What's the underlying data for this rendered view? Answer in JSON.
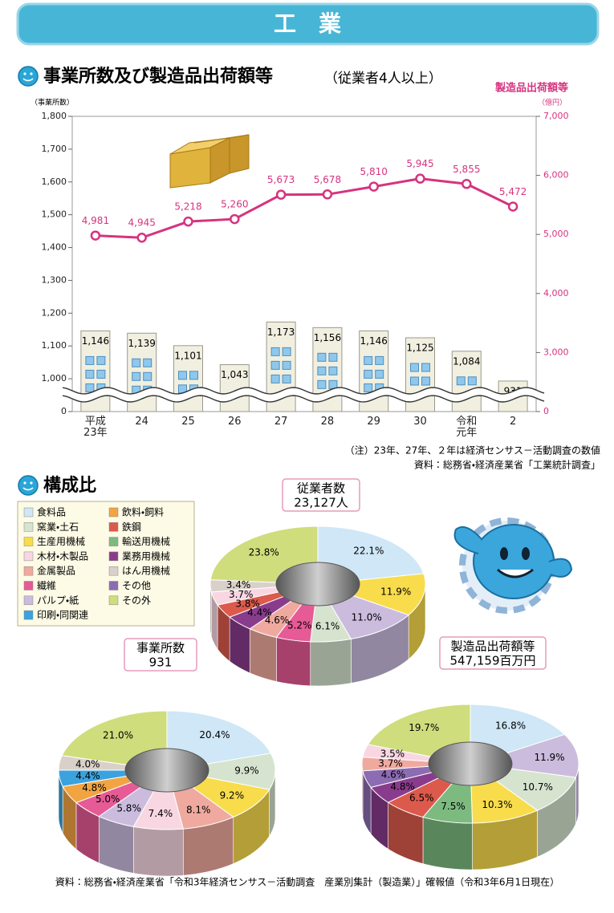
{
  "header": {
    "title": "工　業"
  },
  "chart_data": [
    {
      "type": "bar_line",
      "title": "事業所数及び製造品出荷額等",
      "subtitle": "（従業者4人以上）",
      "ylabel": "（事業所数）",
      "y2label": "製造品出荷額等",
      "y2unit": "（億円）",
      "categories": [
        "平成\n23年",
        "24",
        "25",
        "26",
        "27",
        "28",
        "29",
        "30",
        "令和\n元年",
        "2"
      ],
      "series": [
        {
          "type": "bar",
          "axis": "y",
          "color": "#f1efe0",
          "values": [
            1146,
            1139,
            1101,
            1043,
            1173,
            1156,
            1146,
            1125,
            1084,
            931
          ],
          "value_labels": [
            "1,146",
            "1,139",
            "1,101",
            "1,043",
            "1,173",
            "1,156",
            "1,146",
            "1,125",
            "1,084",
            "931"
          ]
        },
        {
          "type": "line",
          "axis": "y2",
          "color": "#d6337f",
          "values": [
            4981,
            4945,
            5218,
            5260,
            5673,
            5678,
            5810,
            5945,
            5855,
            5472
          ],
          "value_labels": [
            "4,981",
            "4,945",
            "5,218",
            "5,260",
            "5,673",
            "5,678",
            "5,810",
            "5,945",
            "5,855",
            "5,472"
          ]
        }
      ],
      "axis_break": true,
      "ylim": [
        0,
        1800
      ],
      "yticks": [
        0,
        {
          "value": 1000,
          "label": "1,000"
        },
        {
          "value": 1100,
          "label": "1,100"
        },
        {
          "value": 1200,
          "label": "1,200"
        },
        {
          "value": 1300,
          "label": "1,300"
        },
        {
          "value": 1400,
          "label": "1,400"
        },
        {
          "value": 1500,
          "label": "1,500"
        },
        {
          "value": 1600,
          "label": "1,600"
        },
        {
          "value": 1700,
          "label": "1,700"
        },
        {
          "value": 1800,
          "label": "1,800"
        }
      ],
      "y2lim": [
        0,
        7000
      ],
      "y2ticks": [
        0,
        {
          "value": 3000,
          "label": "3,000"
        },
        {
          "value": 4000,
          "label": "4,000"
        },
        {
          "value": 5000,
          "label": "5,000"
        },
        {
          "value": 6000,
          "label": "6,000"
        },
        {
          "value": 7000,
          "label": "7,000"
        }
      ],
      "note": "（注）23年、27年、２年は経済センサス－活動調査の数値",
      "source": "資料：総務省・経済産業省「工業統計調査」"
    },
    {
      "type": "pie",
      "title": "従業者数",
      "subtitle": "23,127人",
      "categories": [
        "食料品",
        "生産用機械",
        "パルプ・紙",
        "窯業・土石",
        "繊維",
        "金属製品",
        "業務用機械",
        "鉄鋼",
        "木材・木製品",
        "はん用機械",
        "その外"
      ],
      "values": [
        22.1,
        11.9,
        11.0,
        6.1,
        5.2,
        4.6,
        4.4,
        3.8,
        3.7,
        3.4,
        23.8
      ],
      "value_labels": [
        "22.1%",
        "11.9%",
        "11.0%",
        "6.1%",
        "5.2%",
        "4.6%",
        "4.4%",
        "3.8%",
        "3.7%",
        "3.4%",
        "23.8%"
      ]
    },
    {
      "type": "pie",
      "title": "事業所数",
      "subtitle": "931",
      "categories": [
        "食料品",
        "窯業・土石",
        "生産用機械",
        "金属製品",
        "木材・木製品",
        "パルプ・紙",
        "繊維",
        "飲料・飼料",
        "印刷・同関連",
        "はん用機械",
        "その外"
      ],
      "values": [
        20.4,
        9.9,
        9.2,
        8.1,
        7.4,
        5.8,
        5.0,
        4.8,
        4.4,
        4.0,
        21.0
      ],
      "value_labels": [
        "20.4%",
        "9.9%",
        "9.2%",
        "8.1%",
        "7.4%",
        "5.8%",
        "5.0%",
        "4.8%",
        "4.4%",
        "4.0%",
        "21.0%"
      ]
    },
    {
      "type": "pie",
      "title": "製造品出荷額等",
      "subtitle": "547,159百万円",
      "categories": [
        "食料品",
        "パルプ・紙",
        "窯業・土石",
        "生産用機械",
        "輸送用機械",
        "鉄鋼",
        "業務用機械",
        "その他",
        "金属製品",
        "木材・木製品",
        "その外"
      ],
      "values": [
        16.8,
        11.9,
        10.7,
        10.3,
        7.5,
        6.5,
        4.8,
        4.6,
        3.7,
        3.5,
        19.7
      ],
      "value_labels": [
        "16.8%",
        "11.9%",
        "10.7%",
        "10.3%",
        "7.5%",
        "6.5%",
        "4.8%",
        "4.6%",
        "3.7%",
        "3.5%",
        "19.7%"
      ]
    }
  ],
  "composition": {
    "title": "構成比",
    "legend": {
      "categories": [
        "食料品",
        "窯業・土石",
        "生産用機械",
        "木材・木製品",
        "金属製品",
        "繊維",
        "パルプ・紙",
        "印刷・同関連",
        "飲料・飼料",
        "鉄鋼",
        "輸送用機械",
        "業務用機械",
        "はん用機械",
        "その他",
        "その外"
      ],
      "colors": [
        "#cfe7f6",
        "#d6e4cf",
        "#f8dc4c",
        "#f8d7e2",
        "#f0a99f",
        "#e65a96",
        "#cbbcde",
        "#3aa2de",
        "#f2a443",
        "#dc5a4c",
        "#7dba80",
        "#8a3c8c",
        "#d9d1c9",
        "#8c6cb2",
        "#cfdd7c"
      ]
    }
  },
  "footer": {
    "source": "資料：総務省・経済産業省「令和3年経済センサス－活動調査　産業別集計（製造業）」確報値（令和3年6月1日現在）"
  }
}
